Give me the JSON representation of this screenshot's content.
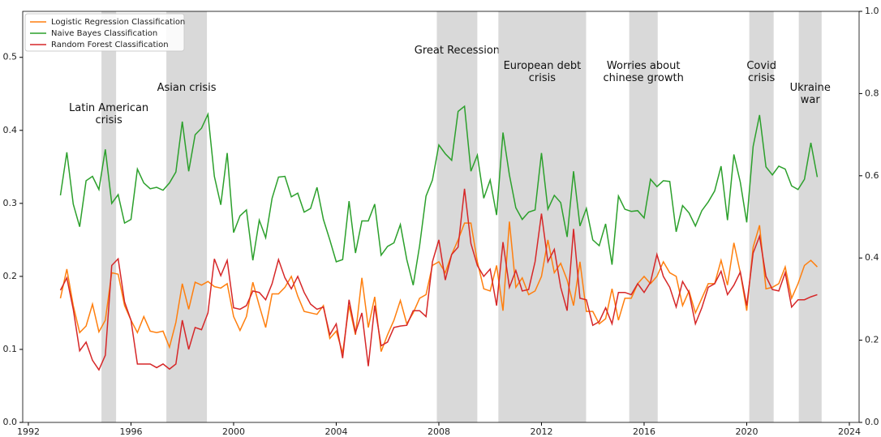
{
  "chart_data": {
    "type": "line",
    "x": [
      1993.25,
      1993.5,
      1993.75,
      1994,
      1994.25,
      1994.5,
      1994.75,
      1995,
      1995.25,
      1995.5,
      1995.75,
      1996,
      1996.25,
      1996.5,
      1996.75,
      1997,
      1997.25,
      1997.5,
      1997.75,
      1998,
      1998.25,
      1998.5,
      1998.75,
      1999,
      1999.25,
      1999.5,
      1999.75,
      2000,
      2000.25,
      2000.5,
      2000.75,
      2001,
      2001.25,
      2001.5,
      2001.75,
      2002,
      2002.25,
      2002.5,
      2002.75,
      2003,
      2003.25,
      2003.5,
      2003.75,
      2004,
      2004.25,
      2004.5,
      2004.75,
      2005,
      2005.25,
      2005.5,
      2005.75,
      2006,
      2006.25,
      2006.5,
      2006.75,
      2007,
      2007.25,
      2007.5,
      2007.75,
      2008,
      2008.25,
      2008.5,
      2008.75,
      2009,
      2009.25,
      2009.5,
      2009.75,
      2010,
      2010.25,
      2010.5,
      2010.75,
      2011,
      2011.25,
      2011.5,
      2011.75,
      2012,
      2012.25,
      2012.5,
      2012.75,
      2013,
      2013.25,
      2013.5,
      2013.75,
      2014,
      2014.25,
      2014.5,
      2014.75,
      2015,
      2015.25,
      2015.5,
      2015.75,
      2016,
      2016.25,
      2016.5,
      2016.75,
      2017,
      2017.25,
      2017.5,
      2017.75,
      2018,
      2018.25,
      2018.5,
      2018.75,
      2019,
      2019.25,
      2019.5,
      2019.75,
      2020,
      2020.25,
      2020.5,
      2020.75,
      2021,
      2021.25,
      2021.5,
      2021.75,
      2022,
      2022.25,
      2022.5,
      2022.75
    ],
    "series": [
      {
        "name": "Logistic Regression Classification",
        "color": "#ff7f0e",
        "values": [
          0.17,
          0.21,
          0.16,
          0.123,
          0.132,
          0.162,
          0.124,
          0.14,
          0.205,
          0.203,
          0.16,
          0.14,
          0.123,
          0.145,
          0.125,
          0.123,
          0.125,
          0.103,
          0.137,
          0.19,
          0.155,
          0.192,
          0.188,
          0.193,
          0.186,
          0.184,
          0.19,
          0.145,
          0.126,
          0.145,
          0.192,
          0.16,
          0.13,
          0.176,
          0.176,
          0.185,
          0.2,
          0.173,
          0.152,
          0.15,
          0.148,
          0.16,
          0.115,
          0.125,
          0.095,
          0.16,
          0.12,
          0.198,
          0.13,
          0.172,
          0.097,
          0.12,
          0.14,
          0.167,
          0.135,
          0.15,
          0.17,
          0.175,
          0.215,
          0.22,
          0.205,
          0.23,
          0.25,
          0.273,
          0.273,
          0.22,
          0.183,
          0.18,
          0.215,
          0.153,
          0.275,
          0.185,
          0.198,
          0.175,
          0.18,
          0.2,
          0.25,
          0.205,
          0.218,
          0.195,
          0.16,
          0.22,
          0.152,
          0.152,
          0.135,
          0.142,
          0.183,
          0.14,
          0.17,
          0.17,
          0.19,
          0.2,
          0.19,
          0.2,
          0.22,
          0.205,
          0.2,
          0.16,
          0.18,
          0.15,
          0.17,
          0.19,
          0.19,
          0.222,
          0.188,
          0.246,
          0.205,
          0.153,
          0.24,
          0.27,
          0.183,
          0.185,
          0.19,
          0.213,
          0.17,
          0.19,
          0.215,
          0.222,
          0.213
        ]
      },
      {
        "name": "Naive Bayes Classification",
        "color": "#2ca02c",
        "values": [
          0.311,
          0.37,
          0.299,
          0.268,
          0.331,
          0.337,
          0.319,
          0.374,
          0.3,
          0.312,
          0.273,
          0.278,
          0.347,
          0.328,
          0.32,
          0.322,
          0.318,
          0.328,
          0.343,
          0.412,
          0.344,
          0.394,
          0.403,
          0.422,
          0.337,
          0.298,
          0.369,
          0.26,
          0.283,
          0.291,
          0.222,
          0.277,
          0.253,
          0.307,
          0.336,
          0.337,
          0.309,
          0.314,
          0.288,
          0.293,
          0.322,
          0.278,
          0.25,
          0.22,
          0.223,
          0.303,
          0.232,
          0.276,
          0.276,
          0.299,
          0.229,
          0.241,
          0.246,
          0.271,
          0.223,
          0.188,
          0.242,
          0.31,
          0.332,
          0.38,
          0.368,
          0.359,
          0.426,
          0.433,
          0.344,
          0.366,
          0.307,
          0.332,
          0.284,
          0.397,
          0.339,
          0.294,
          0.278,
          0.288,
          0.291,
          0.369,
          0.292,
          0.311,
          0.301,
          0.254,
          0.344,
          0.269,
          0.293,
          0.25,
          0.242,
          0.272,
          0.216,
          0.31,
          0.292,
          0.289,
          0.29,
          0.28,
          0.333,
          0.323,
          0.331,
          0.33,
          0.261,
          0.297,
          0.287,
          0.269,
          0.29,
          0.302,
          0.317,
          0.351,
          0.277,
          0.367,
          0.329,
          0.274,
          0.378,
          0.421,
          0.35,
          0.339,
          0.351,
          0.347,
          0.324,
          0.319,
          0.333,
          0.383,
          0.336
        ]
      },
      {
        "name": "Random Forest Classification",
        "color": "#d62728",
        "values": [
          0.181,
          0.198,
          0.155,
          0.098,
          0.11,
          0.085,
          0.072,
          0.092,
          0.215,
          0.224,
          0.165,
          0.14,
          0.08,
          0.08,
          0.08,
          0.075,
          0.08,
          0.073,
          0.08,
          0.14,
          0.1,
          0.13,
          0.127,
          0.15,
          0.224,
          0.201,
          0.222,
          0.157,
          0.155,
          0.16,
          0.18,
          0.178,
          0.168,
          0.19,
          0.223,
          0.198,
          0.183,
          0.2,
          0.178,
          0.162,
          0.155,
          0.158,
          0.12,
          0.135,
          0.088,
          0.168,
          0.123,
          0.15,
          0.077,
          0.16,
          0.105,
          0.11,
          0.13,
          0.132,
          0.133,
          0.153,
          0.153,
          0.145,
          0.22,
          0.25,
          0.195,
          0.23,
          0.24,
          0.32,
          0.245,
          0.215,
          0.2,
          0.21,
          0.16,
          0.247,
          0.185,
          0.208,
          0.18,
          0.182,
          0.22,
          0.286,
          0.22,
          0.237,
          0.185,
          0.153,
          0.265,
          0.17,
          0.168,
          0.133,
          0.138,
          0.157,
          0.135,
          0.178,
          0.178,
          0.175,
          0.19,
          0.178,
          0.192,
          0.23,
          0.2,
          0.185,
          0.158,
          0.193,
          0.178,
          0.135,
          0.157,
          0.185,
          0.19,
          0.207,
          0.175,
          0.188,
          0.206,
          0.16,
          0.232,
          0.255,
          0.2,
          0.182,
          0.18,
          0.205,
          0.158,
          0.168,
          0.168,
          0.172,
          0.175
        ]
      }
    ],
    "annotations": [
      {
        "start": 1994.85,
        "end": 1995.42,
        "label": [
          "Latin American",
          "crisis"
        ]
      },
      {
        "start": 1997.38,
        "end": 1998.96,
        "label": [
          "Asian crisis"
        ]
      },
      {
        "start": 2007.92,
        "end": 2009.5,
        "label": [
          "Great Recession"
        ]
      },
      {
        "start": 2010.32,
        "end": 2013.74,
        "label": [
          "European debt",
          "crisis"
        ]
      },
      {
        "start": 2015.42,
        "end": 2016.53,
        "label": [
          "Worries about",
          "chinese growth"
        ]
      },
      {
        "start": 2020.1,
        "end": 2021.05,
        "label": [
          "Covid",
          "crisis"
        ]
      },
      {
        "start": 2022.03,
        "end": 2022.92,
        "label": [
          "Ukraine",
          "war"
        ]
      }
    ],
    "shade_color": "#d9d9d9",
    "xlim": [
      1991.78,
      2024.38
    ],
    "xticks": [
      1992,
      1996,
      2000,
      2004,
      2008,
      2012,
      2016,
      2020,
      2024
    ],
    "ylim": [
      0,
      0.563
    ],
    "yticks": [
      {
        "value": 0,
        "label": "0.0"
      },
      0.1,
      0.2,
      0.3,
      0.4,
      0.5
    ],
    "y2lim": [
      0,
      1
    ],
    "y2ticks": [
      {
        "value": 0,
        "label": "0.0"
      },
      0.2,
      0.4,
      0.6,
      0.8,
      {
        "value": 1,
        "label": "1.0"
      }
    ],
    "legend": "upper left",
    "grid": false
  }
}
